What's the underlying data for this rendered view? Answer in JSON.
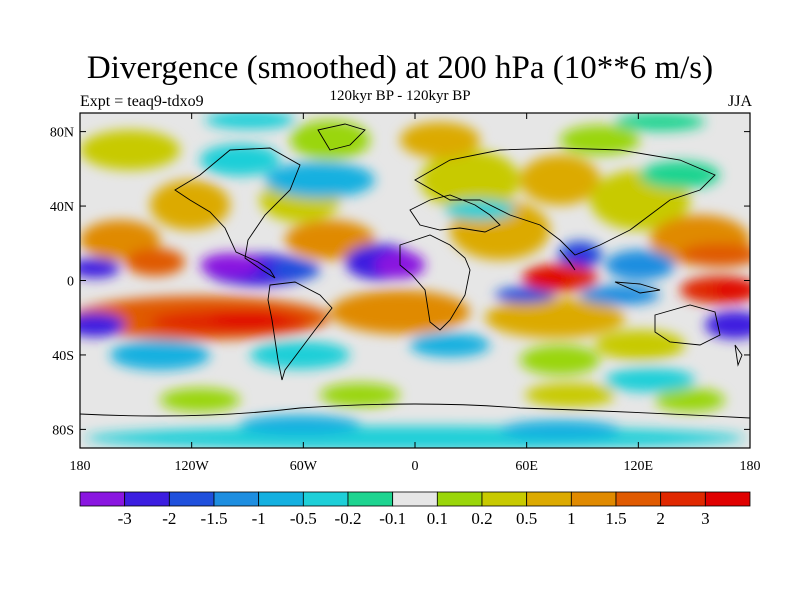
{
  "chart_data": {
    "type": "heatmap",
    "title": "Divergence (smoothed) at 200 hPa (10**6 m/s)",
    "subtitle": "120kyr BP - 120kyr BP",
    "left_label": "Expt = teaq9-tdxo9",
    "right_label": "JJA",
    "x_ticks": [
      {
        "value": -180,
        "label": "180"
      },
      {
        "value": -120,
        "label": "120W"
      },
      {
        "value": -60,
        "label": "60W"
      },
      {
        "value": 0,
        "label": "0"
      },
      {
        "value": 60,
        "label": "60E"
      },
      {
        "value": 120,
        "label": "120E"
      },
      {
        "value": 180,
        "label": "180"
      }
    ],
    "y_ticks": [
      {
        "value": 80,
        "label": "80N"
      },
      {
        "value": 40,
        "label": "40N"
      },
      {
        "value": 0,
        "label": "0"
      },
      {
        "value": -40,
        "label": "40S"
      },
      {
        "value": -80,
        "label": "80S"
      }
    ],
    "xlim": [
      -180,
      180
    ],
    "ylim": [
      -90,
      90
    ],
    "colorbar": {
      "levels": [
        "-3",
        "-2",
        "-1.5",
        "-1",
        "-0.5",
        "-0.2",
        "-0.1",
        "0.1",
        "0.2",
        "0.5",
        "1",
        "1.5",
        "2",
        "3"
      ],
      "colors": [
        "#8a16e0",
        "#3c1ee0",
        "#1f50dc",
        "#1e8ee0",
        "#14b0e0",
        "#1ecfd8",
        "#1ed490",
        "#e6e6e6",
        "#9ad60a",
        "#c8ca00",
        "#dcaa00",
        "#e08a00",
        "#e05a00",
        "#e02800",
        "#e00000"
      ]
    },
    "features": [
      {
        "name": "equatorial-east-pacific-convergence",
        "lon": -115,
        "lat": 5,
        "value": -3
      },
      {
        "name": "central-america-convergence",
        "lon": -80,
        "lat": 8,
        "value": -2
      },
      {
        "name": "west-africa-convergence",
        "lon": -5,
        "lat": 5,
        "value": -3
      },
      {
        "name": "indian-ocean-divergence",
        "lon": 70,
        "lat": 0,
        "value": 3
      },
      {
        "name": "bay-of-bengal-convergence",
        "lon": 88,
        "lat": 15,
        "value": -1.5
      },
      {
        "name": "west-pacific-divergence",
        "lon": 160,
        "lat": -3,
        "value": 3
      },
      {
        "name": "south-pacific-divergence-band",
        "lon": -110,
        "lat": -18,
        "value": 2
      },
      {
        "name": "south-atlantic-divergence",
        "lon": -5,
        "lat": -22,
        "value": 1.5
      },
      {
        "name": "south-indian-divergence",
        "lon": 60,
        "lat": -25,
        "value": 1
      },
      {
        "name": "pacific-south-subtropic-convergence",
        "lon": -172,
        "lat": -22,
        "value": -2
      },
      {
        "name": "dateline-south-convergence",
        "lon": 172,
        "lat": -25,
        "value": -2
      },
      {
        "name": "north-atlantic-divergence",
        "lon": -40,
        "lat": 45,
        "value": 1
      },
      {
        "name": "north-pacific-divergence",
        "lon": -150,
        "lat": 40,
        "value": 1
      },
      {
        "name": "siberia-divergence",
        "lon": 80,
        "lat": 60,
        "value": 0.5
      },
      {
        "name": "antarctic-convergence",
        "lon": 0,
        "lat": -80,
        "value": -0.5
      }
    ]
  }
}
